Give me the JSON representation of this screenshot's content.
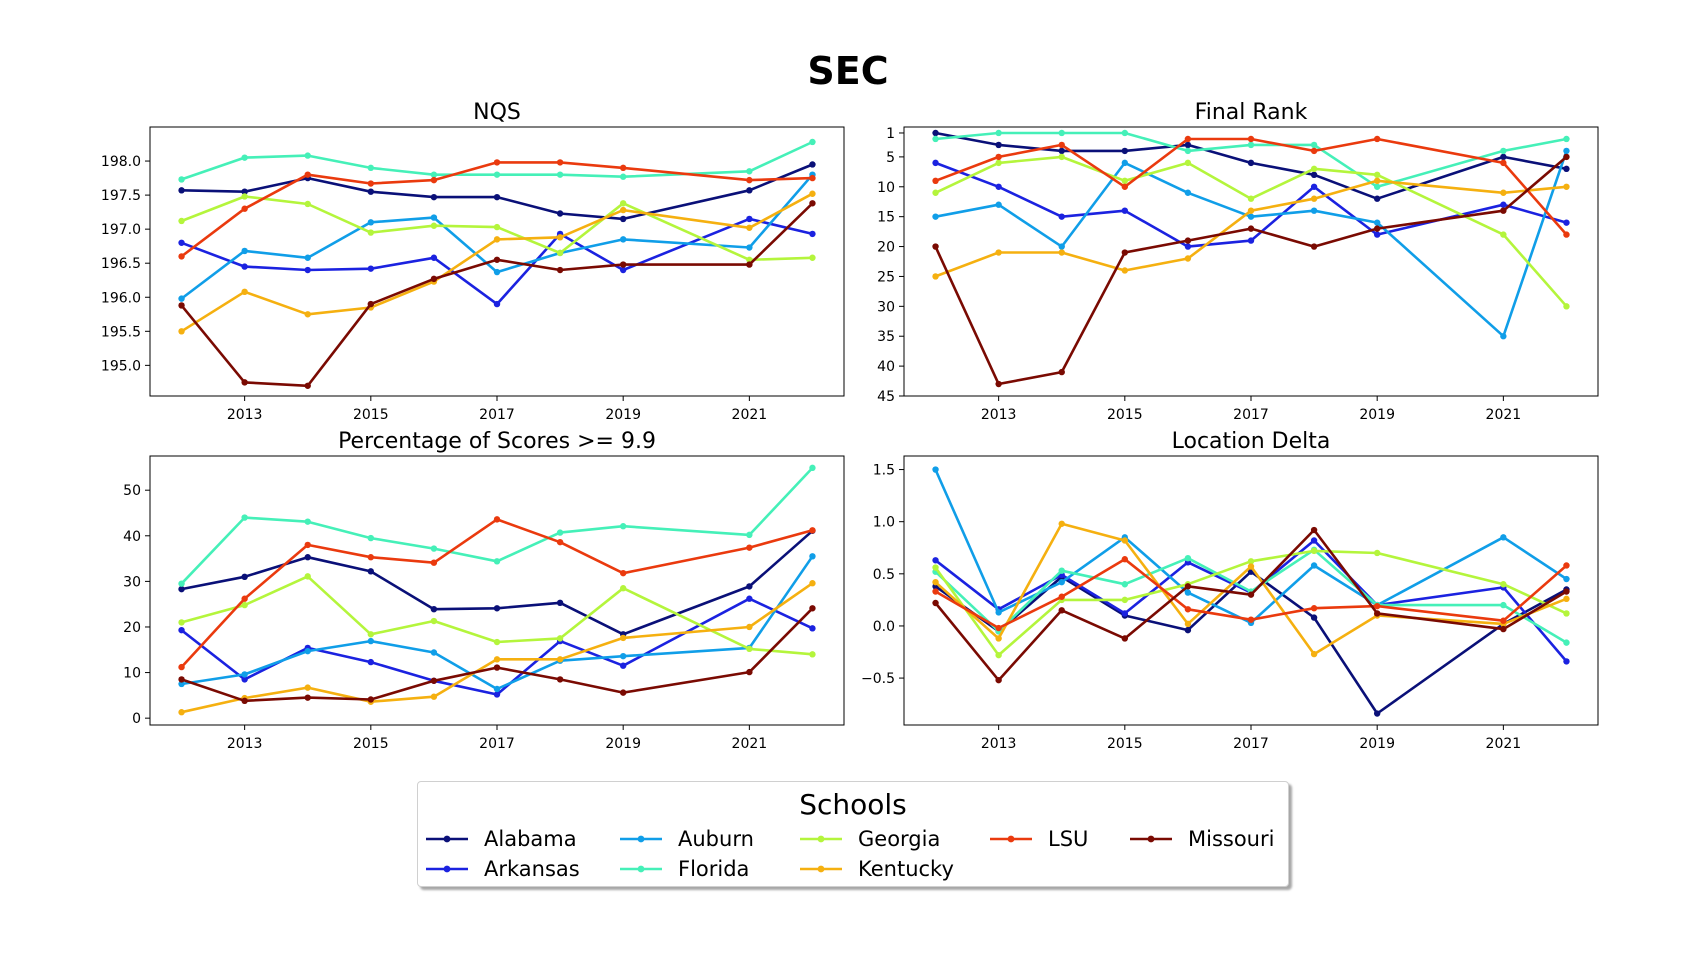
{
  "figure_title": "SEC",
  "colors": {
    "Alabama": "#0a1078",
    "Arkansas": "#1b22e0",
    "Auburn": "#109ee8",
    "Florida": "#45f0b8",
    "Georgia": "#b4f53c",
    "Kentucky": "#f5b010",
    "LSU": "#ea3a0e",
    "Missouri": "#7a0a02"
  },
  "legend": {
    "title": "Schools",
    "items": [
      "Alabama",
      "Arkansas",
      "Auburn",
      "Florida",
      "Georgia",
      "Kentucky",
      "LSU",
      "Missouri"
    ]
  },
  "chart_data": [
    {
      "type": "line",
      "title": "NQS",
      "xlabel": "",
      "ylabel": "",
      "x": [
        2012,
        2013,
        2014,
        2015,
        2016,
        2017,
        2018,
        2019,
        2021,
        2022
      ],
      "xticks": [
        "2013",
        "2015",
        "2017",
        "2019",
        "2021"
      ],
      "yticks": [
        "195.0",
        "195.5",
        "196.0",
        "196.5",
        "197.0",
        "197.5",
        "198.0"
      ],
      "ylim": [
        194.55,
        198.5
      ],
      "inverted": false,
      "grid": false,
      "series": [
        {
          "name": "Alabama",
          "values": [
            197.57,
            197.55,
            197.75,
            197.55,
            197.47,
            197.47,
            197.23,
            197.15,
            197.57,
            197.95
          ]
        },
        {
          "name": "Arkansas",
          "values": [
            196.8,
            196.45,
            196.4,
            196.42,
            196.58,
            195.9,
            196.93,
            196.4,
            197.15,
            196.93
          ]
        },
        {
          "name": "Auburn",
          "values": [
            195.98,
            196.68,
            196.58,
            197.1,
            197.17,
            196.37,
            196.65,
            196.85,
            196.73,
            197.8
          ]
        },
        {
          "name": "Florida",
          "values": [
            197.73,
            198.05,
            198.08,
            197.9,
            197.8,
            197.8,
            197.8,
            197.77,
            197.85,
            198.28
          ]
        },
        {
          "name": "Georgia",
          "values": [
            197.12,
            197.48,
            197.37,
            196.95,
            197.05,
            197.03,
            196.65,
            197.38,
            196.55,
            196.58
          ]
        },
        {
          "name": "Kentucky",
          "values": [
            195.5,
            196.08,
            195.75,
            195.85,
            196.23,
            196.85,
            196.88,
            197.28,
            197.02,
            197.52
          ]
        },
        {
          "name": "LSU",
          "values": [
            196.6,
            197.3,
            197.8,
            197.67,
            197.72,
            197.98,
            197.98,
            197.9,
            197.72,
            197.75
          ]
        },
        {
          "name": "Missouri",
          "values": [
            195.88,
            194.75,
            194.7,
            195.9,
            196.27,
            196.55,
            196.4,
            196.48,
            196.48,
            197.38
          ]
        }
      ]
    },
    {
      "type": "line",
      "title": "Final Rank",
      "xlabel": "",
      "ylabel": "",
      "x": [
        2012,
        2013,
        2014,
        2015,
        2016,
        2017,
        2018,
        2019,
        2021,
        2022
      ],
      "xticks": [
        "2013",
        "2015",
        "2017",
        "2019",
        "2021"
      ],
      "yticks": [
        "1",
        "5",
        "10",
        "15",
        "20",
        "25",
        "30",
        "35",
        "40",
        "45"
      ],
      "ylim": [
        45,
        0
      ],
      "inverted": true,
      "grid": false,
      "series": [
        {
          "name": "Alabama",
          "values": [
            1,
            3,
            4,
            4,
            3,
            6,
            8,
            12,
            5,
            7
          ]
        },
        {
          "name": "Arkansas",
          "values": [
            6,
            10,
            15,
            14,
            20,
            19,
            10,
            18,
            13,
            16
          ]
        },
        {
          "name": "Auburn",
          "values": [
            15,
            13,
            20,
            6,
            11,
            15,
            14,
            16,
            35,
            4
          ]
        },
        {
          "name": "Florida",
          "values": [
            2,
            1,
            1,
            1,
            4,
            3,
            3,
            10,
            4,
            2
          ]
        },
        {
          "name": "Georgia",
          "values": [
            11,
            6,
            5,
            9,
            6,
            12,
            7,
            8,
            18,
            30
          ]
        },
        {
          "name": "Kentucky",
          "values": [
            25,
            21,
            21,
            24,
            22,
            14,
            12,
            9,
            11,
            10
          ]
        },
        {
          "name": "LSU",
          "values": [
            9,
            5,
            3,
            10,
            2,
            2,
            4,
            2,
            6,
            18
          ]
        },
        {
          "name": "Missouri",
          "values": [
            20,
            43,
            41,
            21,
            19,
            17,
            20,
            17,
            14,
            5
          ]
        }
      ]
    },
    {
      "type": "line",
      "title": "Percentage of Scores >= 9.9",
      "xlabel": "",
      "ylabel": "",
      "x": [
        2012,
        2013,
        2014,
        2015,
        2016,
        2017,
        2018,
        2019,
        2021,
        2022
      ],
      "xticks": [
        "2013",
        "2015",
        "2017",
        "2019",
        "2021"
      ],
      "yticks": [
        "0",
        "10",
        "20",
        "30",
        "40",
        "50"
      ],
      "ylim": [
        -1.5,
        57.5
      ],
      "inverted": false,
      "grid": false,
      "series": [
        {
          "name": "Alabama",
          "values": [
            28.3,
            31,
            35.3,
            32.2,
            23.9,
            24.1,
            25.3,
            18.4,
            28.9,
            41.1
          ]
        },
        {
          "name": "Arkansas",
          "values": [
            19.3,
            8.5,
            15.4,
            12.3,
            8.2,
            5.2,
            16.9,
            11.5,
            26.2,
            19.7
          ]
        },
        {
          "name": "Auburn",
          "values": [
            7.5,
            9.6,
            14.7,
            16.9,
            14.4,
            6.4,
            12.6,
            13.6,
            15.4,
            35.5
          ]
        },
        {
          "name": "Florida",
          "values": [
            29.5,
            44,
            43.1,
            39.5,
            37.2,
            34.4,
            40.7,
            42.1,
            40.2,
            54.9
          ]
        },
        {
          "name": "Georgia",
          "values": [
            21,
            24.8,
            31.1,
            18.4,
            21.3,
            16.7,
            17.5,
            28.5,
            15.2,
            14
          ]
        },
        {
          "name": "Kentucky",
          "values": [
            1.3,
            4.4,
            6.7,
            3.6,
            4.7,
            12.9,
            12.9,
            17.6,
            20,
            29.6
          ]
        },
        {
          "name": "LSU",
          "values": [
            11.2,
            26.2,
            38,
            35.3,
            34.1,
            43.6,
            38.6,
            31.8,
            37.4,
            41.2
          ]
        },
        {
          "name": "Missouri",
          "values": [
            8.5,
            3.8,
            4.5,
            4.1,
            8.2,
            11.1,
            8.5,
            5.6,
            10.1,
            24.1
          ]
        }
      ]
    },
    {
      "type": "line",
      "title": "Location Delta",
      "xlabel": "",
      "ylabel": "",
      "x": [
        2012,
        2013,
        2014,
        2015,
        2016,
        2017,
        2018,
        2019,
        2021,
        2022
      ],
      "xticks": [
        "2013",
        "2015",
        "2017",
        "2019",
        "2021"
      ],
      "yticks": [
        "−0.5",
        "0.0",
        "0.5",
        "1.0",
        "1.5"
      ],
      "ylim": [
        -0.95,
        1.63
      ],
      "inverted": false,
      "grid": false,
      "series": [
        {
          "name": "Alabama",
          "values": [
            0.38,
            -0.05,
            0.47,
            0.1,
            -0.04,
            0.52,
            0.08,
            -0.84,
            0.02,
            0.35
          ]
        },
        {
          "name": "Arkansas",
          "values": [
            0.63,
            0.16,
            0.49,
            0.12,
            0.61,
            0.32,
            0.82,
            0.2,
            0.37,
            -0.34
          ]
        },
        {
          "name": "Auburn",
          "values": [
            1.5,
            0.13,
            0.42,
            0.85,
            0.32,
            0.03,
            0.58,
            0.2,
            0.85,
            0.45
          ]
        },
        {
          "name": "Florida",
          "values": [
            0.52,
            -0.05,
            0.53,
            0.4,
            0.65,
            0.33,
            0.73,
            0.2,
            0.2,
            -0.16
          ]
        },
        {
          "name": "Georgia",
          "values": [
            0.56,
            -0.28,
            0.25,
            0.25,
            0.4,
            0.62,
            0.72,
            0.7,
            0.4,
            0.12
          ]
        },
        {
          "name": "Kentucky",
          "values": [
            0.42,
            -0.12,
            0.98,
            0.82,
            0.02,
            0.57,
            -0.27,
            0.1,
            0.02,
            0.26
          ]
        },
        {
          "name": "LSU",
          "values": [
            0.33,
            -0.02,
            0.28,
            0.64,
            0.16,
            0.06,
            0.17,
            0.19,
            0.05,
            0.58
          ]
        },
        {
          "name": "Missouri",
          "values": [
            0.22,
            -0.52,
            0.15,
            -0.12,
            0.38,
            0.3,
            0.92,
            0.12,
            -0.03,
            0.33
          ]
        }
      ]
    }
  ]
}
